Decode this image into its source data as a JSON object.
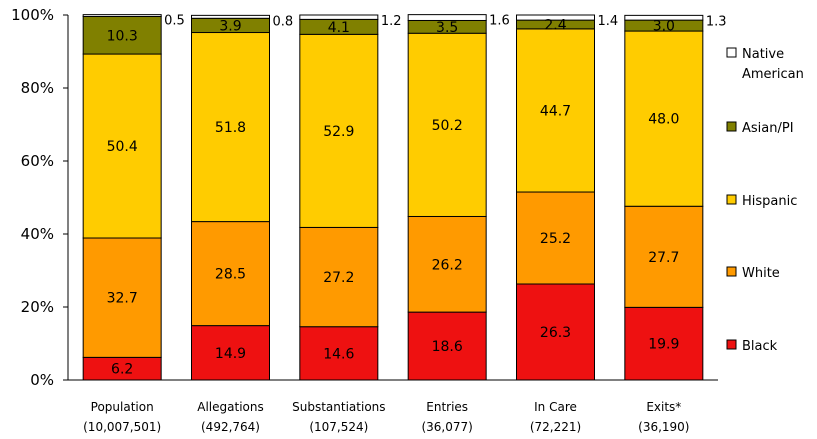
{
  "chart_data": {
    "type": "bar",
    "stacked": true,
    "title": "",
    "xlabel": "",
    "ylabel": "",
    "ylim": [
      0,
      100
    ],
    "y_tick_labels": [
      "0%",
      "20%",
      "40%",
      "60%",
      "80%",
      "100%"
    ],
    "categories": [
      "Population",
      "Allegations",
      "Substantiations",
      "Entries",
      "In Care",
      "Exits*"
    ],
    "category_counts": [
      "(10,007,501)",
      "(492,764)",
      "(107,524)",
      "(36,077)",
      "(72,221)",
      "(36,190)"
    ],
    "series": [
      {
        "name": "Black",
        "color": "#ee1111",
        "values": [
          6.2,
          14.9,
          14.6,
          18.6,
          26.3,
          19.9
        ]
      },
      {
        "name": "White",
        "color": "#ff9a00",
        "values": [
          32.7,
          28.5,
          27.2,
          26.2,
          25.2,
          27.7
        ]
      },
      {
        "name": "Hispanic",
        "color": "#ffcc00",
        "values": [
          50.4,
          51.8,
          52.9,
          50.2,
          44.7,
          48.0
        ]
      },
      {
        "name": "Asian/PI",
        "color": "#808000",
        "values": [
          10.3,
          3.9,
          4.1,
          3.5,
          2.4,
          3.0
        ]
      },
      {
        "name": "Native American",
        "legend_lines": [
          "Native",
          "American"
        ],
        "color": "#ffffff",
        "values": [
          0.5,
          0.8,
          1.2,
          1.6,
          1.4,
          1.3
        ]
      }
    ],
    "value_labels": [
      [
        "6.2",
        "14.9",
        "14.6",
        "18.6",
        "26.3",
        "19.9"
      ],
      [
        "32.7",
        "28.5",
        "27.2",
        "26.2",
        "25.2",
        "27.7"
      ],
      [
        "50.4",
        "51.8",
        "52.9",
        "50.2",
        "44.7",
        "48.0"
      ],
      [
        "10.3",
        "3.9",
        "4.1",
        "3.5",
        "2.4",
        "3.0"
      ],
      [
        "0.5",
        "0.8",
        "1.2",
        "1.6",
        "1.4",
        "1.3"
      ]
    ],
    "legend_position": "right",
    "grid": false
  }
}
